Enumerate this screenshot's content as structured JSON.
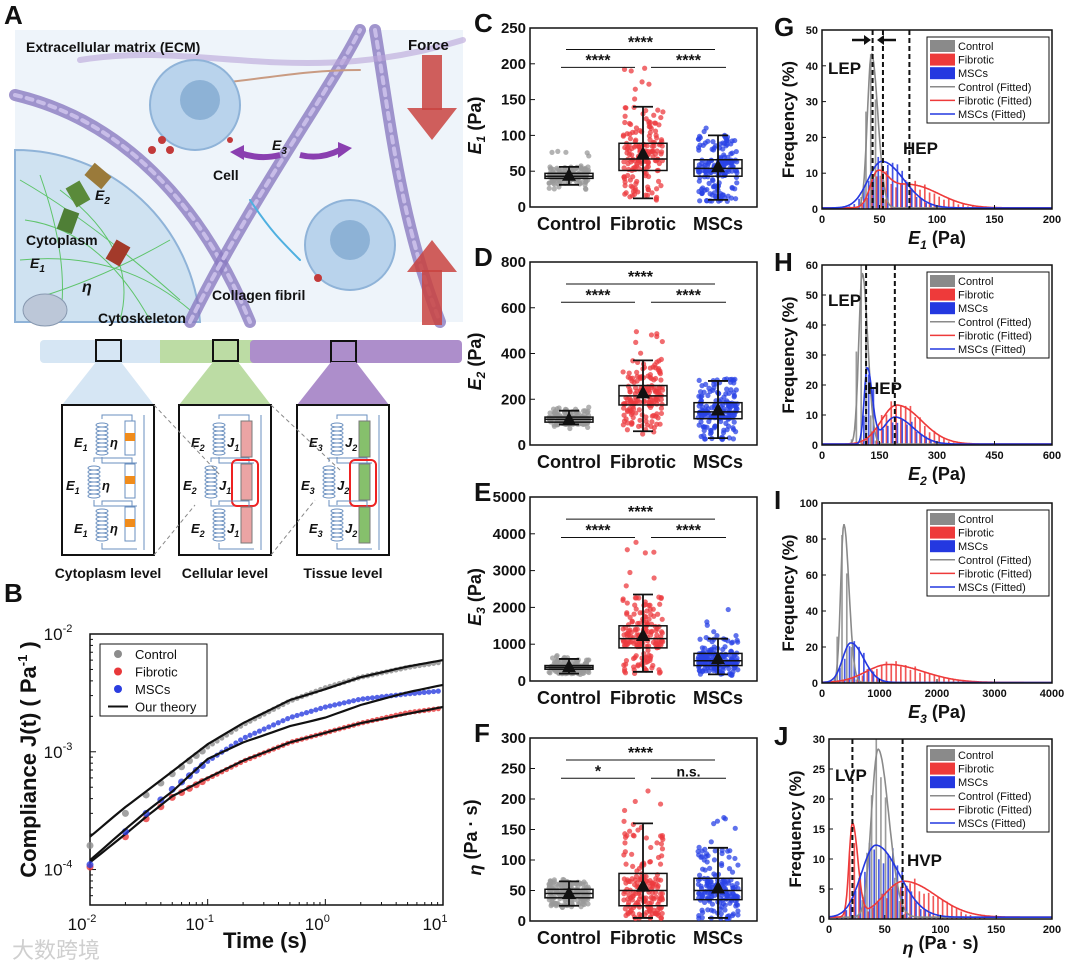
{
  "figure": {
    "watermark": "大数跨境"
  },
  "panel_a": {
    "panel_label": "A",
    "title": "Extracellular matrix (ECM)",
    "force": "Force",
    "cell": "Cell",
    "e3": "E",
    "e3_sub": "3",
    "e2": "E",
    "e2_sub": "2",
    "e1": "E",
    "e1_sub": "1",
    "eta": "η",
    "cytoplasm": "Cytoplasm",
    "cytoskeleton": "Cytoskeleton",
    "collagen": "Collagen fibril",
    "levels": [
      "Cytoplasm level",
      "Cellular level",
      "Tissue level"
    ],
    "circuits": [
      {
        "spring": "E",
        "sub": "1",
        "element": "η",
        "element_sub": ""
      },
      {
        "spring": "E",
        "sub": "2",
        "element": "J",
        "element_sub": "1"
      },
      {
        "spring": "E",
        "sub": "3",
        "element": "J",
        "element_sub": "2"
      }
    ],
    "colors": {
      "cytoplasm": "#d6e6f4",
      "cellular": "#bcdca4",
      "tissue": "#ad8ecb",
      "force": "#c9433f"
    }
  },
  "chart_data": [
    {
      "panel_label": "B",
      "type": "line+scatter",
      "scale": "log-log",
      "xlabel": "Time  (s)",
      "ylabel": "Compliance  J(t)  ( Pa",
      "ylabel_exp": "-1",
      "ylabel_end": " )",
      "xlim": [
        0.01,
        10
      ],
      "ylim": [
        5e-05,
        0.01
      ],
      "xticks": [
        {
          "v": 0.01,
          "base": "10",
          "exp": "-2"
        },
        {
          "v": 0.1,
          "base": "10",
          "exp": "-1"
        },
        {
          "v": 1,
          "base": "10",
          "exp": "0"
        },
        {
          "v": 10,
          "base": "10",
          "exp": "1"
        }
      ],
      "yticks": [
        {
          "v": 0.0001,
          "base": "10",
          "exp": "-4"
        },
        {
          "v": 0.001,
          "base": "10",
          "exp": "-3"
        },
        {
          "v": 0.01,
          "base": "10",
          "exp": "-2"
        }
      ],
      "x": [
        0.01,
        0.02,
        0.03,
        0.05,
        0.1,
        0.2,
        0.5,
        1,
        2,
        5,
        10
      ],
      "series": [
        {
          "name": "Control",
          "color": "#8c8c8c",
          "values": [
            0.00016,
            0.0003,
            0.00043,
            0.00065,
            0.0011,
            0.0017,
            0.0027,
            0.0035,
            0.0043,
            0.0052,
            0.0058
          ],
          "theory": [
            0.00019,
            0.00034,
            0.00046,
            0.00068,
            0.00116,
            0.00175,
            0.00275,
            0.0034,
            0.0043,
            0.0053,
            0.006
          ]
        },
        {
          "name": "Fibrotic",
          "color": "#e8383a",
          "values": [
            0.000105,
            0.00019,
            0.00027,
            0.00041,
            0.00059,
            0.00083,
            0.0012,
            0.00145,
            0.00175,
            0.00215,
            0.00235
          ],
          "theory": [
            0.000115,
            0.0002,
            0.00028,
            0.00042,
            0.0006,
            0.00084,
            0.0012,
            0.00145,
            0.00175,
            0.0021,
            0.0024
          ]
        },
        {
          "name": "MSCs",
          "color": "#2b3de0",
          "values": [
            0.00011,
            0.00021,
            0.0003,
            0.00048,
            0.00083,
            0.0013,
            0.00195,
            0.0024,
            0.0028,
            0.0031,
            0.0033
          ],
          "theory": [
            0.00012,
            0.00022,
            0.00031,
            0.00046,
            0.00087,
            0.0012,
            0.00165,
            0.00195,
            0.0025,
            0.0032,
            0.0037
          ]
        }
      ],
      "legend": [
        "Control",
        "Fibrotic",
        "MSCs",
        "Our theory"
      ],
      "legend_position": "top-left"
    },
    {
      "panel_label": "C",
      "type": "box",
      "ylabel": "E",
      "ylabel_sub": "1",
      "ylabel_unit": " (Pa)",
      "ylim": [
        0,
        250
      ],
      "yticks": [
        0,
        50,
        100,
        150,
        200,
        250
      ],
      "categories": [
        "Control",
        "Fibrotic",
        "MSCs"
      ],
      "boxes": [
        {
          "min": 31,
          "q1": 40,
          "median": 43,
          "q3": 47,
          "max": 56,
          "mean": 45,
          "outlier_max": 80,
          "color": "#9a9a9a"
        },
        {
          "min": 12,
          "q1": 51,
          "median": 67,
          "q3": 89,
          "max": 140,
          "mean": 75,
          "outlier_max": 200,
          "color": "#ec3b3f"
        },
        {
          "min": 10,
          "q1": 43,
          "median": 54,
          "q3": 66,
          "max": 100,
          "mean": 57,
          "outlier_max": 120,
          "color": "#2a43e6"
        }
      ],
      "significance": [
        {
          "pair": "Control-Fibrotic",
          "label": "****"
        },
        {
          "pair": "Fibrotic-MSCs",
          "label": "****"
        },
        {
          "pair": "Control-MSCs",
          "label": "****"
        }
      ]
    },
    {
      "panel_label": "D",
      "type": "box",
      "ylabel": "E",
      "ylabel_sub": "2",
      "ylabel_unit": " (Pa)",
      "ylim": [
        0,
        800
      ],
      "yticks": [
        0,
        200,
        400,
        600,
        800
      ],
      "categories": [
        "Control",
        "Fibrotic",
        "MSCs"
      ],
      "boxes": [
        {
          "min": 90,
          "q1": 100,
          "median": 112,
          "q3": 122,
          "max": 150,
          "mean": 115,
          "outlier_max": 165,
          "color": "#9a9a9a"
        },
        {
          "min": 60,
          "q1": 175,
          "median": 215,
          "q3": 260,
          "max": 370,
          "mean": 230,
          "outlier_max": 600,
          "color": "#ec3b3f"
        },
        {
          "min": 30,
          "q1": 115,
          "median": 145,
          "q3": 185,
          "max": 280,
          "mean": 155,
          "outlier_max": 290,
          "color": "#2a43e6"
        }
      ],
      "significance": [
        {
          "pair": "Control-Fibrotic",
          "label": "****"
        },
        {
          "pair": "Fibrotic-MSCs",
          "label": "****"
        },
        {
          "pair": "Control-MSCs",
          "label": "****"
        }
      ]
    },
    {
      "panel_label": "E",
      "type": "box",
      "ylabel": "E",
      "ylabel_sub": "3",
      "ylabel_unit": " (Pa)",
      "ylim": [
        0,
        5000
      ],
      "yticks": [
        0,
        1000,
        2000,
        3000,
        4000,
        5000
      ],
      "categories": [
        "Control",
        "Fibrotic",
        "MSCs"
      ],
      "boxes": [
        {
          "min": 200,
          "q1": 320,
          "median": 370,
          "q3": 420,
          "max": 600,
          "mean": 400,
          "outlier_max": 700,
          "color": "#9a9a9a"
        },
        {
          "min": 250,
          "q1": 900,
          "median": 1150,
          "q3": 1500,
          "max": 2350,
          "mean": 1250,
          "outlier_max": 3800,
          "color": "#ec3b3f"
        },
        {
          "min": 180,
          "q1": 420,
          "median": 550,
          "q3": 750,
          "max": 1150,
          "mean": 620,
          "outlier_max": 2100,
          "color": "#2a43e6"
        }
      ],
      "significance": [
        {
          "pair": "Control-Fibrotic",
          "label": "****"
        },
        {
          "pair": "Fibrotic-MSCs",
          "label": "****"
        },
        {
          "pair": "Control-MSCs",
          "label": "****"
        }
      ]
    },
    {
      "panel_label": "F",
      "type": "box",
      "ylabel": "η",
      "ylabel_sub": "",
      "ylabel_unit": " (Pa · s)",
      "ylim": [
        0,
        300
      ],
      "yticks": [
        0,
        50,
        100,
        150,
        200,
        250,
        300
      ],
      "categories": [
        "Control",
        "Fibrotic",
        "MSCs"
      ],
      "boxes": [
        {
          "min": 25,
          "q1": 38,
          "median": 45,
          "q3": 52,
          "max": 65,
          "mean": 46,
          "outlier_max": 70,
          "color": "#9a9a9a"
        },
        {
          "min": 5,
          "q1": 25,
          "median": 50,
          "q3": 78,
          "max": 160,
          "mean": 58,
          "outlier_max": 215,
          "color": "#ec3b3f"
        },
        {
          "min": 5,
          "q1": 35,
          "median": 50,
          "q3": 70,
          "max": 120,
          "mean": 55,
          "outlier_max": 170,
          "color": "#2a43e6"
        }
      ],
      "significance": [
        {
          "pair": "Control-Fibrotic",
          "label": "*"
        },
        {
          "pair": "Fibrotic-MSCs",
          "label": "n.s."
        },
        {
          "pair": "Control-MSCs",
          "label": "****"
        }
      ]
    },
    {
      "panel_label": "G",
      "type": "histogram+fit",
      "xlabel": "E",
      "xlabel_sub": "1",
      "xlabel_unit": " (Pa)",
      "ylabel": "Frequency (%)",
      "xlim": [
        0,
        200
      ],
      "ylim": [
        0,
        50
      ],
      "xticks": [
        0,
        50,
        100,
        150,
        200
      ],
      "yticks": [
        0,
        10,
        20,
        30,
        40,
        50
      ],
      "series": [
        {
          "name": "Control",
          "color": "#8a8a8a",
          "fit": [
            {
              "peak": 43,
              "height": 43,
              "width": 3.5
            }
          ]
        },
        {
          "name": "Fibrotic",
          "color": "#ee3a3a",
          "fit": [
            {
              "peak": 48,
              "height": 9,
              "width": 6
            },
            {
              "peak": 76,
              "height": 6.5,
              "width": 16
            }
          ]
        },
        {
          "name": "MSCs",
          "color": "#2438e0",
          "fit": [
            {
              "peak": 52,
              "height": 13,
              "width": 12
            }
          ]
        }
      ],
      "legend": [
        "Control",
        "Fibrotic",
        "MSCs",
        "Control (Fitted)",
        "Fibrotic (Fitted)",
        "MSCs (Fitted)"
      ],
      "vlines": [
        44,
        53,
        76
      ],
      "annotations": [
        "LEP",
        "HEP"
      ]
    },
    {
      "panel_label": "H",
      "type": "histogram+fit",
      "xlabel": "E",
      "xlabel_sub": "2",
      "xlabel_unit": " (Pa)",
      "ylabel": "Frequency (%)",
      "xlim": [
        0,
        600
      ],
      "ylim": [
        0,
        60
      ],
      "xticks": [
        0,
        150,
        300,
        450,
        600
      ],
      "yticks": [
        0,
        10,
        20,
        30,
        40,
        50,
        60
      ],
      "series": [
        {
          "name": "Control",
          "color": "#8a8a8a",
          "fit": [
            {
              "peak": 105,
              "height": 57,
              "width": 9
            }
          ]
        },
        {
          "name": "Fibrotic",
          "color": "#ee3a3a",
          "fit": [
            {
              "peak": 195,
              "height": 13,
              "width": 40
            }
          ]
        },
        {
          "name": "MSCs",
          "color": "#2438e0",
          "fit": [
            {
              "peak": 118,
              "height": 25,
              "width": 8
            },
            {
              "peak": 190,
              "height": 9,
              "width": 30
            }
          ]
        }
      ],
      "legend": [
        "Control",
        "Fibrotic",
        "MSCs",
        "Control (Fitted)",
        "Fibrotic (Fitted)",
        "MSCs (Fitted)"
      ],
      "vlines": [
        115,
        190
      ],
      "annotations": [
        "LEP",
        "HEP"
      ]
    },
    {
      "panel_label": "I",
      "type": "histogram+fit",
      "xlabel": "E",
      "xlabel_sub": "3",
      "xlabel_unit": " (Pa)",
      "ylabel": "Frequency (%)",
      "xlim": [
        0,
        4000
      ],
      "ylim": [
        0,
        100
      ],
      "xticks": [
        0,
        1000,
        2000,
        3000,
        4000
      ],
      "yticks": [
        0,
        20,
        40,
        60,
        80,
        100
      ],
      "series": [
        {
          "name": "Control",
          "color": "#8a8a8a",
          "fit": [
            {
              "peak": 380,
              "height": 88,
              "width": 55
            }
          ]
        },
        {
          "name": "Fibrotic",
          "color": "#ee3a3a",
          "fit": [
            {
              "peak": 1150,
              "height": 10,
              "width": 380
            }
          ]
        },
        {
          "name": "MSCs",
          "color": "#2438e0",
          "fit": [
            {
              "peak": 500,
              "height": 22,
              "width": 140
            }
          ]
        }
      ],
      "legend": [
        "Control",
        "Fibrotic",
        "MSCs",
        "Control (Fitted)",
        "Fibrotic (Fitted)",
        "MSCs (Fitted)"
      ],
      "vlines": [],
      "annotations": []
    },
    {
      "panel_label": "J",
      "type": "histogram+fit",
      "xlabel": "η",
      "xlabel_sub": "",
      "xlabel_unit": " (Pa · s)",
      "ylabel": "Frequency (%)",
      "xlim": [
        0,
        200
      ],
      "ylim": [
        0,
        30
      ],
      "xticks": [
        0,
        50,
        100,
        150,
        200
      ],
      "yticks": [
        0,
        5,
        10,
        15,
        20,
        25,
        30
      ],
      "series": [
        {
          "name": "Control",
          "color": "#8a8a8a",
          "fit": [
            {
              "peak": 44,
              "height": 28,
              "width": 6
            }
          ]
        },
        {
          "name": "Fibrotic",
          "color": "#ee3a3a",
          "fit": [
            {
              "peak": 21,
              "height": 15.5,
              "width": 3
            },
            {
              "peak": 67,
              "height": 6,
              "width": 18
            }
          ]
        },
        {
          "name": "MSCs",
          "color": "#2438e0",
          "fit": [
            {
              "peak": 42,
              "height": 12,
              "width": 13
            }
          ]
        }
      ],
      "legend": [
        "Control",
        "Fibrotic",
        "MSCs",
        "Control (Fitted)",
        "Fibrotic (Fitted)",
        "MSCs (Fitted)"
      ],
      "vlines": [
        21,
        66
      ],
      "annotations": [
        "LVP",
        "HVP"
      ]
    }
  ]
}
